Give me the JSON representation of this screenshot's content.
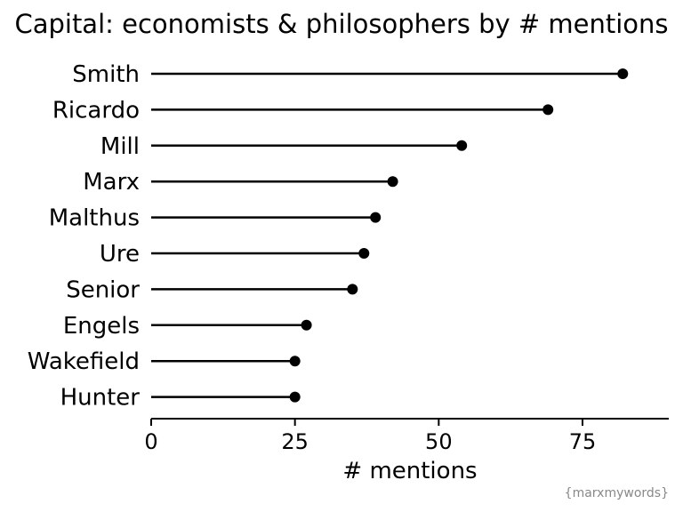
{
  "chart_data": {
    "type": "lollipop",
    "title": "Capital: economists & philosophers by # mentions",
    "xlabel": "# mentions",
    "caption": "{marxmywords}",
    "xlim": [
      0,
      90
    ],
    "xticks": [
      0,
      25,
      50,
      75
    ],
    "grid": false,
    "categories": [
      "Smith",
      "Ricardo",
      "Mill",
      "Marx",
      "Malthus",
      "Ure",
      "Senior",
      "Engels",
      "Wakefield",
      "Hunter"
    ],
    "values": [
      82,
      69,
      54,
      42,
      39,
      37,
      35,
      27,
      25,
      25
    ],
    "colors": {
      "stem": "#000000",
      "point": "#000000",
      "axis": "#000000",
      "caption": "#888888"
    }
  }
}
